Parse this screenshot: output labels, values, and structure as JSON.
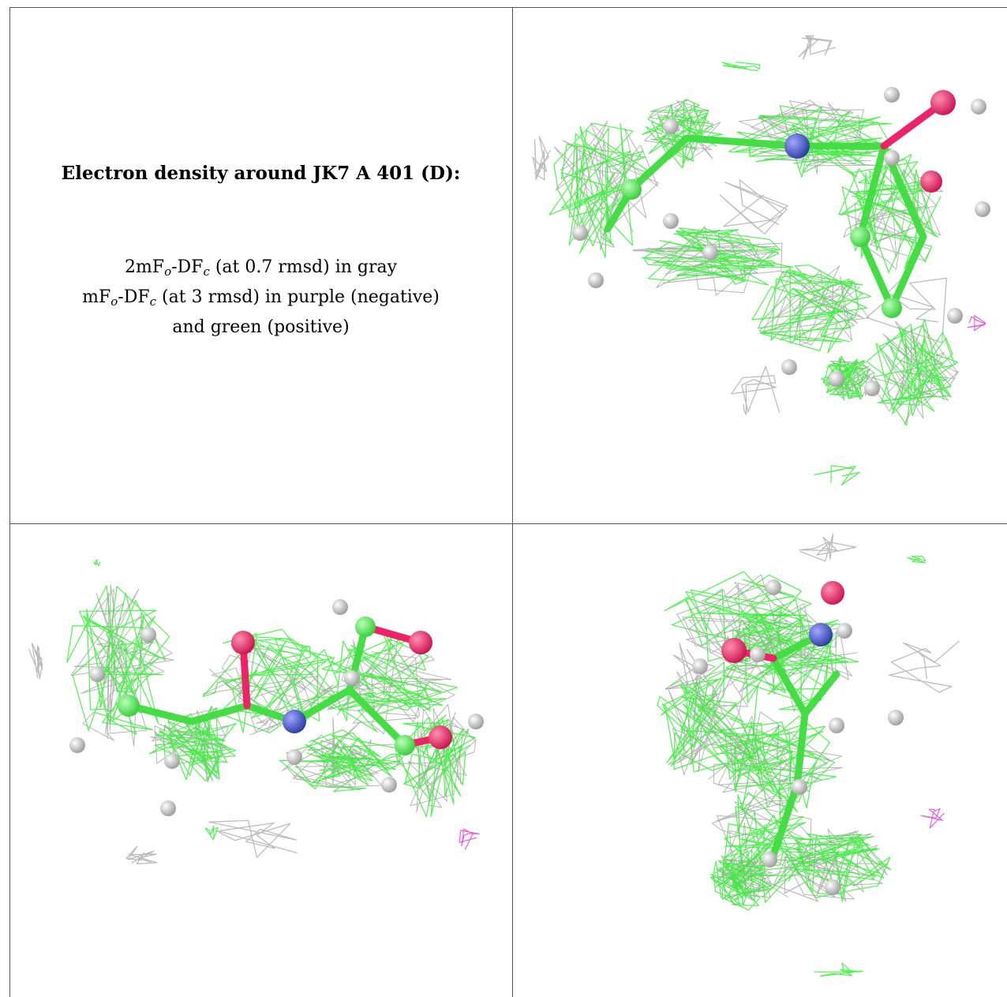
{
  "title": "Electron density around JK7 A 401 (D):",
  "legend": [
    [
      "2mF",
      "o",
      "-DF",
      "c",
      " (at 0.7 rmsd) in gray"
    ],
    [
      "mF",
      "o",
      "-DF",
      "c",
      " (at 3 rmsd) in purple (negative)"
    ],
    [
      "and green (positive)"
    ]
  ]
}
